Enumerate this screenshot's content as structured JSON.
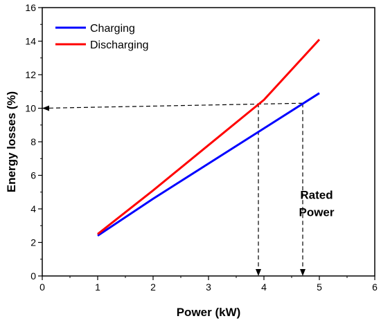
{
  "chart_data": {
    "type": "line",
    "title": "",
    "xlabel": "Power (kW)",
    "ylabel": "Energy losses (%)",
    "xlim": [
      0,
      6
    ],
    "ylim": [
      0,
      16
    ],
    "x_ticks": [
      0,
      1,
      2,
      3,
      4,
      5,
      6
    ],
    "y_ticks": [
      0,
      2,
      4,
      6,
      8,
      10,
      12,
      14,
      16
    ],
    "grid": false,
    "legend_position": "top-left",
    "series": [
      {
        "name": "Charging",
        "color": "#0000ff",
        "x": [
          1,
          2,
          3,
          4,
          5
        ],
        "y": [
          2.4,
          4.6,
          6.7,
          8.8,
          10.9
        ]
      },
      {
        "name": "Discharging",
        "color": "#ff0000",
        "x": [
          1,
          2,
          3,
          4,
          5
        ],
        "y": [
          2.5,
          5.1,
          7.8,
          10.5,
          14.1
        ]
      }
    ],
    "reference_lines": [
      {
        "from": [
          0,
          10
        ],
        "to": [
          4.7,
          10.3
        ]
      },
      {
        "from": [
          3.9,
          10.3
        ],
        "to": [
          3.9,
          0
        ]
      },
      {
        "from": [
          4.7,
          10.3
        ],
        "to": [
          4.7,
          0
        ]
      }
    ],
    "annotations": [
      {
        "line1": "Rated",
        "line2": "Power",
        "x": 4.95,
        "y": 4.6
      }
    ]
  }
}
